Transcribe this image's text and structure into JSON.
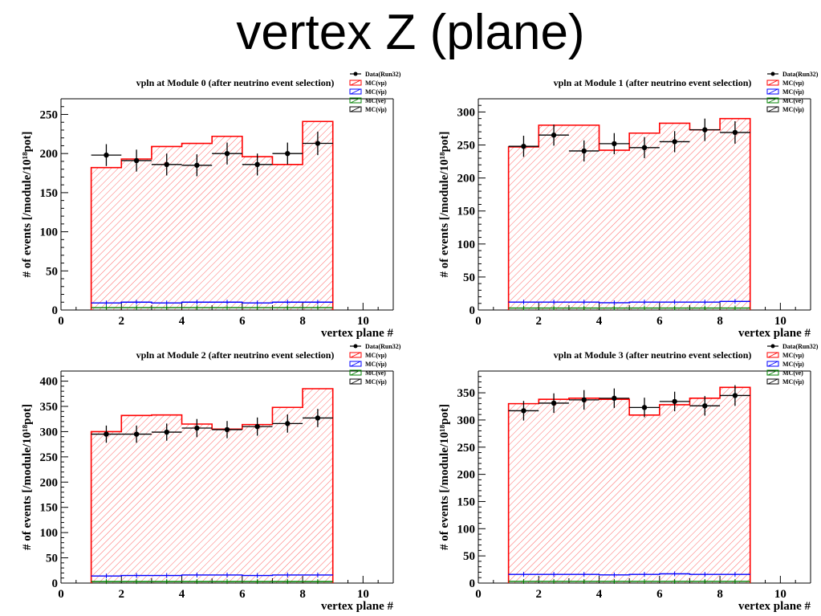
{
  "page_title": "vertex Z (plane)",
  "colors": {
    "data": "#000000",
    "mc_numu": "#ff0000",
    "mc_numubar": "#0000ff",
    "mc_nue": "#008000",
    "mc_other": "#000000"
  },
  "chart_data": [
    {
      "type": "bar",
      "title": "vpln at Module 0 (after neutrino event selection)",
      "xlabel": "vertex plane #",
      "ylabel": "# of events [/module/10¹⁸pot]",
      "xlim": [
        0,
        11
      ],
      "ylim": [
        0,
        270
      ],
      "xticks": [
        0,
        2,
        4,
        6,
        8,
        10
      ],
      "yticks": [
        0,
        50,
        100,
        150,
        200,
        250
      ],
      "bin_edges": [
        1,
        2,
        3,
        4,
        5,
        6,
        7,
        8,
        9
      ],
      "legend": [
        "Data(Run32)",
        "MC(νμ)",
        "MC(ν̄μ)",
        "MC(νe)",
        "MC(ν̄μ)"
      ],
      "legend_position": "top-right",
      "series": [
        {
          "name": "MC(νμ)",
          "values": [
            182,
            193,
            209,
            213,
            222,
            196,
            186,
            241
          ]
        },
        {
          "name": "MC(ν̄μ)",
          "values": [
            9,
            10,
            9,
            10,
            10,
            9,
            10,
            10
          ]
        },
        {
          "name": "MC(νe)",
          "values": [
            3,
            3,
            3,
            3,
            3,
            3,
            3,
            3
          ]
        },
        {
          "name": "Data(Run32)",
          "x": [
            1.5,
            2.5,
            3.5,
            4.5,
            5.5,
            6.5,
            7.5,
            8.5
          ],
          "values": [
            198,
            191,
            186,
            185,
            200,
            186,
            200,
            213
          ],
          "errors": [
            14,
            14,
            14,
            14,
            14,
            14,
            14,
            15
          ]
        }
      ]
    },
    {
      "type": "bar",
      "title": "vpln at Module 1 (after neutrino event selection)",
      "xlabel": "vertex plane #",
      "ylabel": "# of events [/module/10¹⁸pot]",
      "xlim": [
        0,
        11
      ],
      "ylim": [
        0,
        320
      ],
      "xticks": [
        0,
        2,
        4,
        6,
        8,
        10
      ],
      "yticks": [
        0,
        50,
        100,
        150,
        200,
        250,
        300
      ],
      "bin_edges": [
        1,
        2,
        3,
        4,
        5,
        6,
        7,
        8,
        9
      ],
      "legend": [
        "Data(Run32)",
        "MC(νμ)",
        "MC(ν̄μ)",
        "MC(νe)",
        "MC(ν̄μ)"
      ],
      "legend_position": "top-right",
      "series": [
        {
          "name": "MC(νμ)",
          "values": [
            247,
            280,
            280,
            242,
            268,
            283,
            273,
            290
          ]
        },
        {
          "name": "MC(ν̄μ)",
          "values": [
            12,
            12,
            12,
            11,
            12,
            12,
            12,
            13
          ]
        },
        {
          "name": "MC(νe)",
          "values": [
            3,
            3,
            3,
            3,
            3,
            3,
            3,
            3
          ]
        },
        {
          "name": "Data(Run32)",
          "x": [
            1.5,
            2.5,
            3.5,
            4.5,
            5.5,
            6.5,
            7.5,
            8.5
          ],
          "values": [
            248,
            265,
            241,
            252,
            246,
            255,
            273,
            269
          ],
          "errors": [
            16,
            16,
            16,
            16,
            16,
            16,
            17,
            17
          ]
        }
      ]
    },
    {
      "type": "bar",
      "title": "vpln at Module 2 (after neutrino event selection)",
      "xlabel": "vertex plane #",
      "ylabel": "# of events [/module/10¹⁸pot]",
      "xlim": [
        0,
        11
      ],
      "ylim": [
        0,
        420
      ],
      "xticks": [
        0,
        2,
        4,
        6,
        8,
        10
      ],
      "yticks": [
        0,
        50,
        100,
        150,
        200,
        250,
        300,
        350,
        400
      ],
      "bin_edges": [
        1,
        2,
        3,
        4,
        5,
        6,
        7,
        8,
        9
      ],
      "legend": [
        "Data(Run32)",
        "MC(νμ)",
        "MC(ν̄μ)",
        "MC(νe)",
        "MC(ν̄μ)"
      ],
      "legend_position": "top-right",
      "series": [
        {
          "name": "MC(νμ)",
          "values": [
            300,
            332,
            333,
            315,
            305,
            314,
            348,
            385
          ]
        },
        {
          "name": "MC(ν̄μ)",
          "values": [
            14,
            15,
            15,
            16,
            16,
            15,
            16,
            16
          ]
        },
        {
          "name": "MC(νe)",
          "values": [
            3,
            3,
            3,
            3,
            3,
            3,
            3,
            3
          ]
        },
        {
          "name": "Data(Run32)",
          "x": [
            1.5,
            2.5,
            3.5,
            4.5,
            5.5,
            6.5,
            7.5,
            8.5
          ],
          "values": [
            295,
            295,
            299,
            307,
            304,
            310,
            316,
            327
          ],
          "errors": [
            17,
            17,
            17,
            18,
            17,
            18,
            18,
            18
          ]
        }
      ]
    },
    {
      "type": "bar",
      "title": "vpln at Module 3 (after neutrino event selection)",
      "xlabel": "vertex plane #",
      "ylabel": "# of events [/module/10¹⁸pot]",
      "xlim": [
        0,
        11
      ],
      "ylim": [
        0,
        390
      ],
      "xticks": [
        0,
        2,
        4,
        6,
        8,
        10
      ],
      "yticks": [
        0,
        50,
        100,
        150,
        200,
        250,
        300,
        350
      ],
      "bin_edges": [
        1,
        2,
        3,
        4,
        5,
        6,
        7,
        8,
        9
      ],
      "legend": [
        "Data(Run32)",
        "MC(νμ)",
        "MC(ν̄μ)",
        "MC(νe)",
        "MC(ν̄μ)"
      ],
      "legend_position": "top-right",
      "series": [
        {
          "name": "MC(νμ)",
          "values": [
            330,
            338,
            340,
            338,
            309,
            328,
            340,
            360
          ]
        },
        {
          "name": "MC(ν̄μ)",
          "values": [
            16,
            16,
            16,
            15,
            16,
            17,
            16,
            16
          ]
        },
        {
          "name": "MC(νe)",
          "values": [
            3,
            3,
            3,
            3,
            3,
            3,
            3,
            3
          ]
        },
        {
          "name": "Data(Run32)",
          "x": [
            1.5,
            2.5,
            3.5,
            4.5,
            5.5,
            6.5,
            7.5,
            8.5
          ],
          "values": [
            317,
            331,
            337,
            340,
            323,
            334,
            326,
            345
          ],
          "errors": [
            18,
            18,
            18,
            18,
            18,
            18,
            18,
            19
          ]
        }
      ]
    }
  ]
}
